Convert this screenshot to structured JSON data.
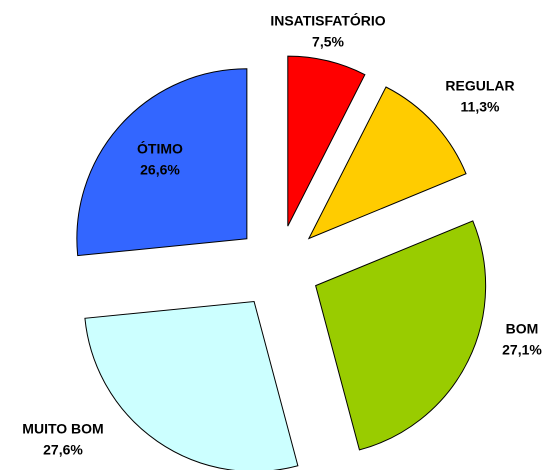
{
  "chart_data": {
    "type": "pie",
    "categories": [
      "INSATISFATÓRIO",
      "REGULAR",
      "BOM",
      "MUITO BOM",
      "ÓTIMO"
    ],
    "values": [
      7.5,
      11.3,
      27.1,
      27.6,
      26.6
    ],
    "value_labels": [
      "7,5%",
      "11,3%",
      "27,1%",
      "27,6%",
      "26,6%"
    ],
    "colors": [
      "#ff0000",
      "#ffcc00",
      "#99cc00",
      "#ccffff",
      "#3366ff"
    ]
  }
}
